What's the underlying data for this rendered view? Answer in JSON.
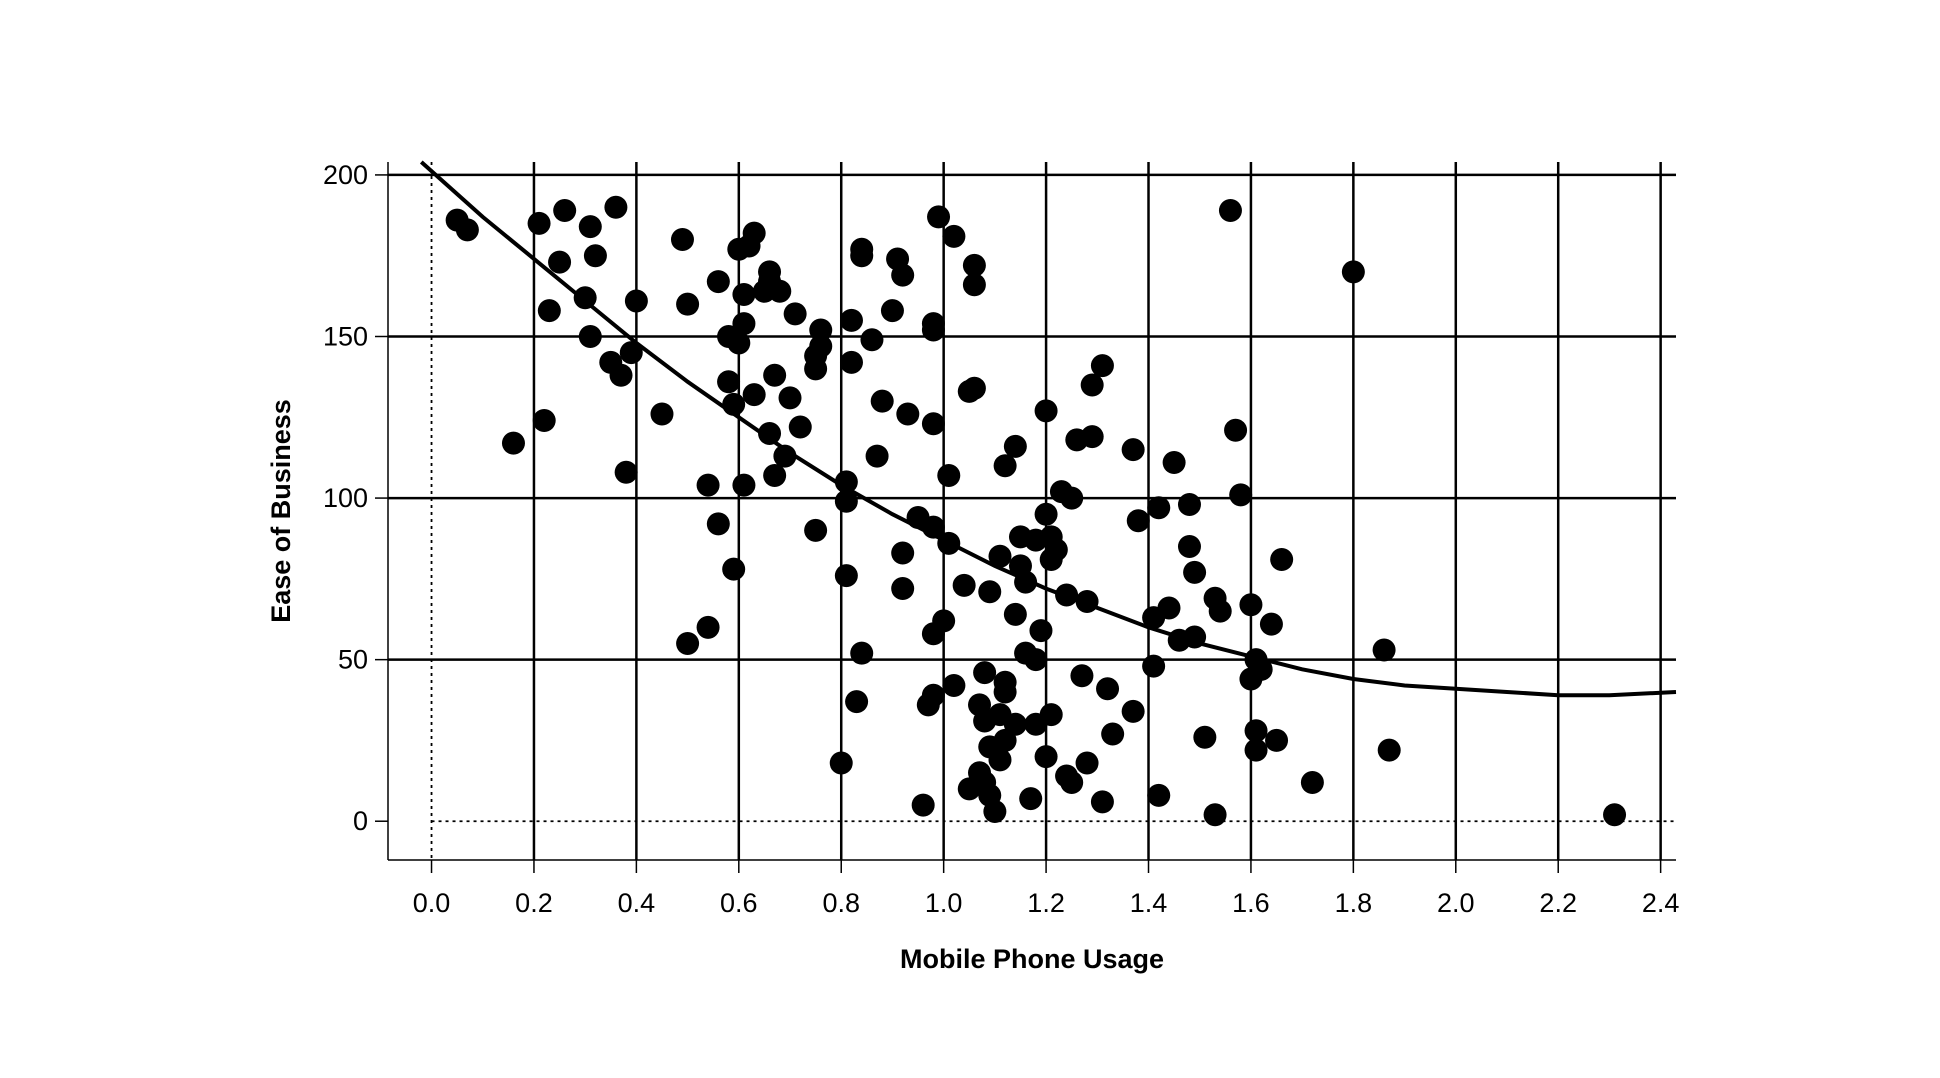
{
  "chart_data": {
    "type": "scatter",
    "title": "",
    "xlabel": "Mobile Phone Usage",
    "ylabel": "Ease of Business",
    "xlim": [
      -0.085,
      2.43
    ],
    "ylim": [
      -12,
      204
    ],
    "xticks": [
      "0.0",
      "0.2",
      "0.4",
      "0.6",
      "0.8",
      "1.0",
      "1.2",
      "1.4",
      "1.6",
      "1.8",
      "2.0",
      "2.2",
      "2.4"
    ],
    "yticks": [
      "0",
      "50",
      "100",
      "150",
      "200"
    ],
    "grid": true,
    "points": [
      [
        0.05,
        186
      ],
      [
        0.07,
        183
      ],
      [
        0.16,
        117
      ],
      [
        0.21,
        185
      ],
      [
        0.22,
        124
      ],
      [
        0.23,
        158
      ],
      [
        0.25,
        173
      ],
      [
        0.26,
        189
      ],
      [
        0.3,
        162
      ],
      [
        0.31,
        150
      ],
      [
        0.31,
        184
      ],
      [
        0.32,
        175
      ],
      [
        0.35,
        142
      ],
      [
        0.36,
        190
      ],
      [
        0.37,
        138
      ],
      [
        0.38,
        108
      ],
      [
        0.39,
        145
      ],
      [
        0.4,
        161
      ],
      [
        0.45,
        126
      ],
      [
        0.49,
        180
      ],
      [
        0.5,
        55
      ],
      [
        0.5,
        160
      ],
      [
        0.54,
        60
      ],
      [
        0.54,
        104
      ],
      [
        0.56,
        92
      ],
      [
        0.56,
        167
      ],
      [
        0.58,
        150
      ],
      [
        0.58,
        136
      ],
      [
        0.59,
        129
      ],
      [
        0.59,
        78
      ],
      [
        0.6,
        148
      ],
      [
        0.6,
        177
      ],
      [
        0.61,
        163
      ],
      [
        0.61,
        154
      ],
      [
        0.61,
        104
      ],
      [
        0.62,
        178
      ],
      [
        0.63,
        182
      ],
      [
        0.63,
        132
      ],
      [
        0.65,
        164
      ],
      [
        0.66,
        170
      ],
      [
        0.66,
        167
      ],
      [
        0.66,
        120
      ],
      [
        0.67,
        138
      ],
      [
        0.67,
        107
      ],
      [
        0.68,
        164
      ],
      [
        0.69,
        113
      ],
      [
        0.7,
        131
      ],
      [
        0.71,
        157
      ],
      [
        0.72,
        122
      ],
      [
        0.75,
        90
      ],
      [
        0.75,
        144
      ],
      [
        0.75,
        140
      ],
      [
        0.76,
        147
      ],
      [
        0.76,
        152
      ],
      [
        0.8,
        18
      ],
      [
        0.81,
        76
      ],
      [
        0.81,
        99
      ],
      [
        0.81,
        105
      ],
      [
        0.82,
        155
      ],
      [
        0.82,
        142
      ],
      [
        0.83,
        37
      ],
      [
        0.84,
        52
      ],
      [
        0.84,
        177
      ],
      [
        0.84,
        175
      ],
      [
        0.86,
        149
      ],
      [
        0.87,
        113
      ],
      [
        0.88,
        130
      ],
      [
        0.9,
        158
      ],
      [
        0.91,
        174
      ],
      [
        0.92,
        169
      ],
      [
        0.92,
        72
      ],
      [
        0.92,
        83
      ],
      [
        0.93,
        126
      ],
      [
        0.95,
        94
      ],
      [
        0.96,
        5
      ],
      [
        0.97,
        36
      ],
      [
        0.98,
        39
      ],
      [
        0.98,
        123
      ],
      [
        0.98,
        58
      ],
      [
        0.98,
        91
      ],
      [
        0.98,
        152
      ],
      [
        0.98,
        154
      ],
      [
        0.99,
        187
      ],
      [
        1.0,
        62
      ],
      [
        1.01,
        107
      ],
      [
        1.01,
        86
      ],
      [
        1.02,
        181
      ],
      [
        1.02,
        42
      ],
      [
        1.04,
        73
      ],
      [
        1.05,
        10
      ],
      [
        1.05,
        133
      ],
      [
        1.06,
        172
      ],
      [
        1.06,
        134
      ],
      [
        1.06,
        166
      ],
      [
        1.07,
        36
      ],
      [
        1.07,
        15
      ],
      [
        1.08,
        31
      ],
      [
        1.08,
        12
      ],
      [
        1.08,
        46
      ],
      [
        1.09,
        71
      ],
      [
        1.09,
        23
      ],
      [
        1.09,
        8
      ],
      [
        1.1,
        3
      ],
      [
        1.11,
        82
      ],
      [
        1.11,
        33
      ],
      [
        1.11,
        19
      ],
      [
        1.12,
        25
      ],
      [
        1.12,
        110
      ],
      [
        1.12,
        43
      ],
      [
        1.12,
        40
      ],
      [
        1.14,
        116
      ],
      [
        1.14,
        64
      ],
      [
        1.14,
        30
      ],
      [
        1.15,
        79
      ],
      [
        1.15,
        88
      ],
      [
        1.16,
        74
      ],
      [
        1.16,
        52
      ],
      [
        1.17,
        7
      ],
      [
        1.18,
        30
      ],
      [
        1.18,
        50
      ],
      [
        1.18,
        87
      ],
      [
        1.19,
        59
      ],
      [
        1.2,
        127
      ],
      [
        1.2,
        20
      ],
      [
        1.2,
        95
      ],
      [
        1.21,
        33
      ],
      [
        1.21,
        81
      ],
      [
        1.21,
        88
      ],
      [
        1.22,
        84
      ],
      [
        1.23,
        102
      ],
      [
        1.24,
        70
      ],
      [
        1.24,
        14
      ],
      [
        1.25,
        100
      ],
      [
        1.25,
        12
      ],
      [
        1.26,
        118
      ],
      [
        1.27,
        45
      ],
      [
        1.28,
        68
      ],
      [
        1.28,
        18
      ],
      [
        1.29,
        119
      ],
      [
        1.29,
        135
      ],
      [
        1.31,
        141
      ],
      [
        1.31,
        6
      ],
      [
        1.32,
        41
      ],
      [
        1.33,
        27
      ],
      [
        1.37,
        34
      ],
      [
        1.37,
        115
      ],
      [
        1.38,
        93
      ],
      [
        1.41,
        63
      ],
      [
        1.41,
        48
      ],
      [
        1.42,
        8
      ],
      [
        1.42,
        97
      ],
      [
        1.44,
        66
      ],
      [
        1.45,
        111
      ],
      [
        1.46,
        56
      ],
      [
        1.48,
        85
      ],
      [
        1.48,
        98
      ],
      [
        1.49,
        77
      ],
      [
        1.49,
        57
      ],
      [
        1.51,
        26
      ],
      [
        1.53,
        2
      ],
      [
        1.53,
        69
      ],
      [
        1.54,
        65
      ],
      [
        1.56,
        189
      ],
      [
        1.57,
        121
      ],
      [
        1.58,
        101
      ],
      [
        1.6,
        67
      ],
      [
        1.6,
        44
      ],
      [
        1.61,
        50
      ],
      [
        1.61,
        28
      ],
      [
        1.61,
        22
      ],
      [
        1.62,
        47
      ],
      [
        1.64,
        61
      ],
      [
        1.65,
        25
      ],
      [
        1.66,
        81
      ],
      [
        1.72,
        12
      ],
      [
        1.8,
        170
      ],
      [
        1.86,
        53
      ],
      [
        1.87,
        22
      ],
      [
        2.31,
        2
      ]
    ],
    "trendline": {
      "type": "quadratic",
      "x": [
        -0.02,
        0.1,
        0.2,
        0.3,
        0.4,
        0.5,
        0.6,
        0.7,
        0.8,
        0.9,
        1.0,
        1.1,
        1.2,
        1.3,
        1.4,
        1.5,
        1.6,
        1.7,
        1.8,
        1.9,
        2.0,
        2.1,
        2.2,
        2.3,
        2.43
      ],
      "y": [
        204,
        187,
        174,
        161,
        148,
        136,
        125,
        114,
        104,
        95,
        87,
        79,
        72,
        66,
        60,
        55,
        51,
        47,
        44,
        42,
        41,
        40,
        39,
        39,
        40
      ]
    }
  }
}
